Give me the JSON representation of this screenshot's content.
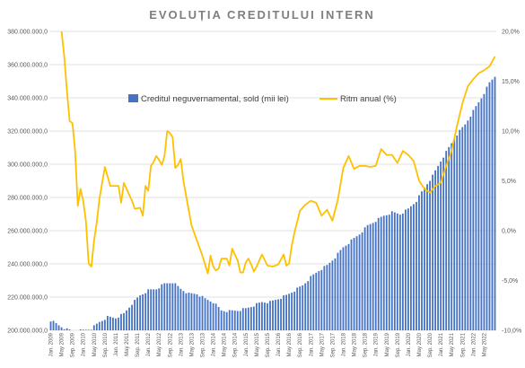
{
  "chart_data": {
    "type": "bar+line",
    "title": "EVOLUȚIA CREDITULUI INTERN",
    "y_left": {
      "min": 200000000,
      "max": 380000000,
      "step": 20000000,
      "tick_labels": [
        "200.000.000,0",
        "220.000.000,0",
        "240.000.000,0",
        "260.000.000,0",
        "280.000.000,0",
        "300.000.000,0",
        "320.000.000,0",
        "340.000.000,0",
        "360.000.000,0",
        "380.000.000,0"
      ]
    },
    "y_right": {
      "min": -10,
      "max": 20,
      "step": 5,
      "tick_labels": [
        "-10,0%",
        "-5,0%",
        "0,0%",
        "5,0%",
        "10,0%",
        "15,0%",
        "20,0%"
      ]
    },
    "x_tick_labels": [
      "Jan. 2009",
      "May 2009",
      "Sep. 2009",
      "Jan. 2010",
      "May 2010",
      "Sep. 2010",
      "Jan. 2011",
      "May 2011",
      "Sep. 2011",
      "Jan. 2012",
      "May 2012",
      "Sep. 2012",
      "Jan. 2013",
      "May 2013",
      "Sep. 2013",
      "Jan. 2014",
      "May 2014",
      "Sep. 2014",
      "Jan. 2015",
      "May 2015",
      "Sep. 2015",
      "Jan. 2016",
      "May 2016",
      "Sep. 2016",
      "Jan. 2017",
      "May 2017",
      "Sep. 2017",
      "Jan. 2018",
      "May 2018",
      "Sep. 2018",
      "Jan. 2019",
      "May 2019",
      "Sep. 2019",
      "Jan. 2020",
      "May 2020",
      "Sep. 2020",
      "Jan. 2021",
      "May 2021",
      "Sep. 2021",
      "Jan. 2022",
      "May 2022"
    ],
    "series": [
      {
        "name": "Creditul neguvernamental, sold (mii lei)",
        "kind": "bar",
        "axis": "left",
        "color": "#4472c4",
        "anchor_months": [
          0,
          3,
          6,
          9,
          12,
          15,
          18,
          21,
          24,
          27,
          30,
          33,
          36,
          39,
          42,
          45,
          48,
          51,
          54,
          57,
          60,
          63,
          66,
          69,
          72,
          75,
          78,
          81,
          84,
          87,
          90,
          93,
          96,
          99,
          102,
          105,
          108,
          111,
          114,
          117,
          120,
          123,
          126,
          129,
          132,
          135,
          138,
          141,
          144,
          147,
          150,
          153,
          156,
          159,
          162,
          164
        ],
        "anchor_values": [
          206000000,
          203000000,
          200500000,
          199500000,
          200000000,
          201000000,
          205000000,
          208000000,
          207500000,
          210000000,
          216000000,
          221000000,
          224000000,
          225000000,
          228000000,
          229000000,
          225000000,
          222000000,
          222000000,
          219000000,
          217000000,
          212000000,
          211500000,
          212000000,
          213000000,
          215000000,
          217000000,
          217000000,
          219000000,
          221000000,
          224000000,
          227000000,
          232000000,
          236000000,
          239000000,
          244000000,
          250000000,
          254000000,
          258000000,
          263000000,
          266000000,
          269000000,
          271000000,
          270000000,
          273000000,
          278000000,
          286000000,
          293000000,
          302000000,
          310000000,
          318000000,
          324000000,
          332000000,
          340000000,
          349000000,
          353000000
        ]
      },
      {
        "name": "Ritm anual (%)",
        "kind": "line",
        "axis": "right",
        "color": "#ffc000",
        "months": [
          4,
          5,
          6,
          7,
          8,
          9,
          10,
          11,
          12,
          13,
          14,
          15,
          16,
          17,
          18,
          20,
          22,
          24,
          25,
          26,
          27,
          28,
          30,
          31,
          33,
          34,
          35,
          36,
          37,
          38,
          39,
          40,
          41,
          42,
          43,
          44,
          45,
          46,
          47,
          48,
          49,
          50,
          52,
          54,
          56,
          58,
          59,
          60,
          61,
          62,
          63,
          64,
          65,
          66,
          67,
          69,
          70,
          71,
          72,
          73,
          74,
          75,
          76,
          78,
          80,
          82,
          84,
          86,
          87,
          88,
          89,
          90,
          92,
          94,
          96,
          98,
          100,
          102,
          104,
          106,
          108,
          110,
          112,
          114,
          116,
          118,
          120,
          122,
          124,
          126,
          128,
          130,
          132,
          134,
          136,
          138,
          140,
          142,
          144,
          146,
          148,
          150,
          152,
          154,
          156,
          158,
          160,
          162,
          164
        ],
        "values": [
          20,
          17.5,
          14,
          11,
          10.8,
          8,
          2.5,
          4.2,
          3,
          1,
          -3.3,
          -3.6,
          -1,
          0.8,
          3.2,
          6.4,
          4.5,
          4.5,
          4.5,
          2.8,
          4.8,
          4.2,
          3,
          2.2,
          2.3,
          1.5,
          4.5,
          4,
          6.5,
          6.9,
          7.5,
          7.1,
          6.6,
          7.5,
          10,
          9.8,
          9.4,
          6.3,
          6.6,
          7.2,
          5,
          3.5,
          0.5,
          -1,
          -2.5,
          -4.3,
          -2.5,
          -3.6,
          -4,
          -3.8,
          -2.8,
          -2.8,
          -2.8,
          -3.5,
          -1.8,
          -3,
          -4.2,
          -4.2,
          -3.2,
          -2.8,
          -3.4,
          -4.1,
          -3.6,
          -2.4,
          -3.5,
          -3.6,
          -3.4,
          -2.4,
          -3.5,
          -3.3,
          -1.5,
          -0.2,
          2,
          2.6,
          3,
          2.8,
          1.5,
          2.1,
          1,
          3.1,
          6.3,
          7.5,
          6.2,
          6.5,
          6.5,
          6.4,
          6.5,
          8.2,
          7.6,
          7.6,
          6.8,
          8,
          7.6,
          7,
          5,
          4.2,
          3.8,
          4.5,
          4.8,
          6.5,
          8,
          10.5,
          12.8,
          14.5,
          15.2,
          15.8,
          16.1,
          16.5,
          17.5
        ]
      }
    ],
    "legend_position": "top-center",
    "grid": true
  }
}
